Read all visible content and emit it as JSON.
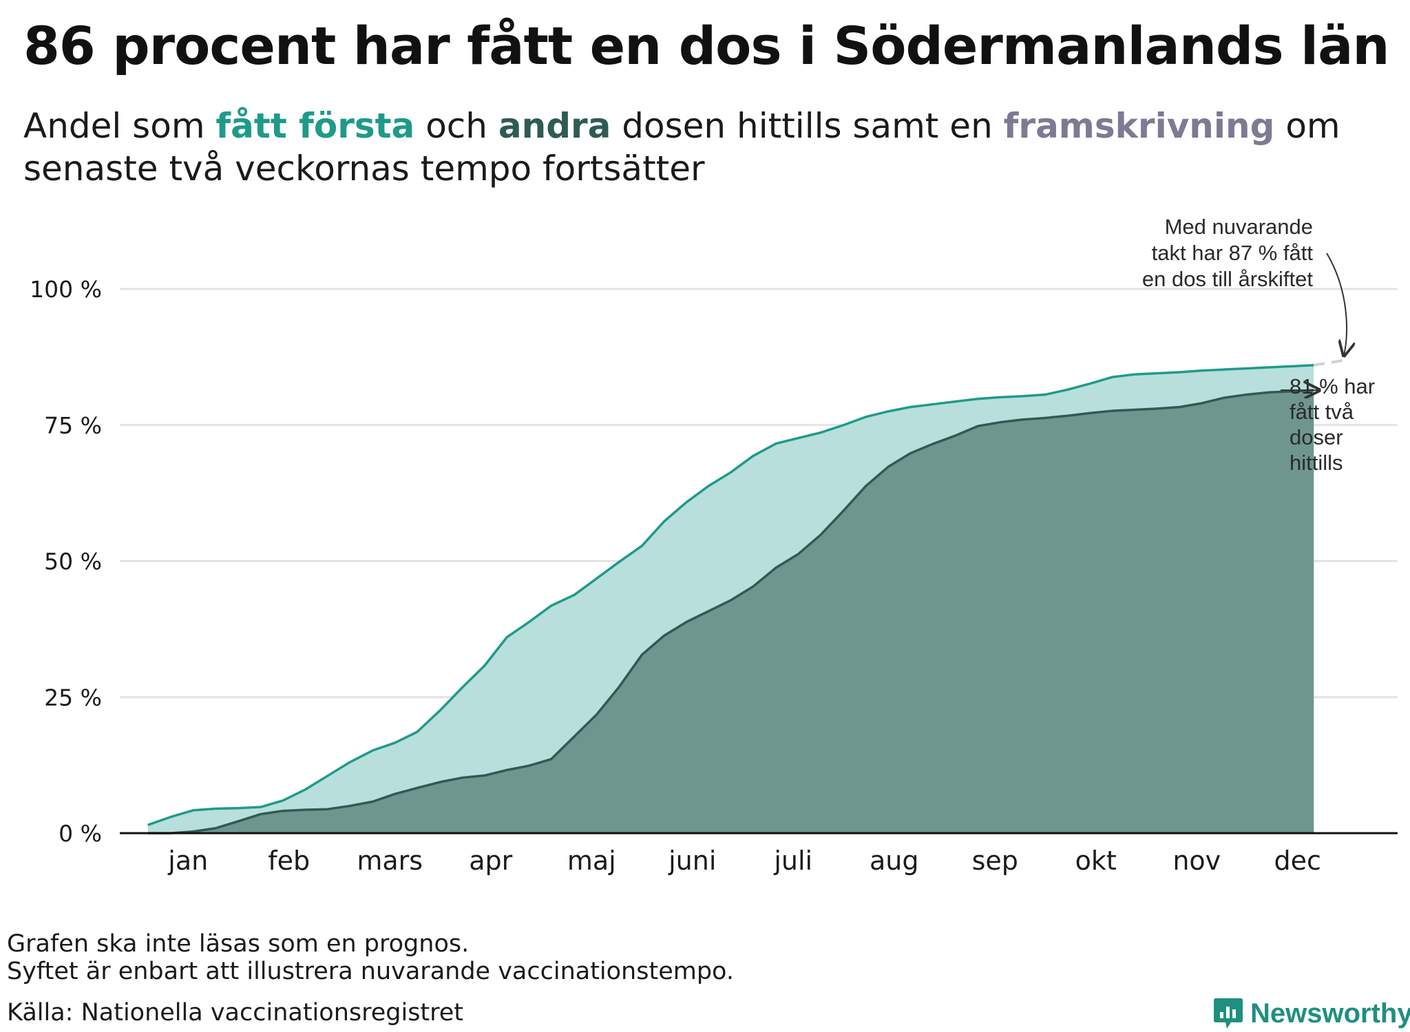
{
  "title": "86 procent har fått en dos i Södermanlands län",
  "subtitle": {
    "part1": "Andel som ",
    "first": "fått första",
    "part2": " och ",
    "second": "andra",
    "part3": " dosen hittills samt en ",
    "projection": "framskrivning",
    "part4": " om senaste två veckornas tempo fortsätter"
  },
  "colors": {
    "first_dose": "#1f9a8a",
    "first_dose_fill": "#b8dfdb",
    "second_dose": "#2e5b54",
    "second_dose_fill": "#6e968f",
    "projection": "#7d7a93",
    "projection_line": "#cfd2d6",
    "grid": "#e3e3e3",
    "axis": "#111111"
  },
  "chart_data": {
    "type": "area",
    "title": "86 procent har fått en dos i Södermanlands län",
    "xlabel": "",
    "ylabel": "",
    "x_unit": "month (0 = start of jan, 12 = end of dec)",
    "xlim": [
      0,
      12
    ],
    "ylim": [
      0,
      100
    ],
    "y_ticks": [
      0,
      25,
      50,
      75,
      100
    ],
    "y_tick_labels": [
      "0 %",
      "25 %",
      "50 %",
      "75 %",
      "100 %"
    ],
    "x_tick_labels": [
      "jan",
      "feb",
      "mars",
      "apr",
      "maj",
      "juni",
      "juli",
      "aug",
      "sep",
      "okt",
      "nov",
      "dec"
    ],
    "grid": true,
    "series": [
      {
        "name": "fått första dosen",
        "x": [
          0.1,
          0.33,
          0.55,
          0.77,
          1.0,
          1.22,
          1.44,
          1.66,
          1.88,
          2.1,
          2.33,
          2.55,
          2.77,
          3.0,
          3.22,
          3.44,
          3.66,
          3.88,
          4.1,
          4.33,
          4.55,
          4.77,
          5.0,
          5.22,
          5.44,
          5.66,
          5.88,
          6.1,
          6.33,
          6.55,
          6.77,
          7.0,
          7.22,
          7.44,
          7.66,
          7.88,
          8.1,
          8.33,
          8.55,
          8.77,
          9.0,
          9.22,
          9.44,
          9.66,
          9.88,
          10.1,
          10.33,
          10.55,
          10.77,
          11.0,
          11.22,
          11.44,
          11.66
        ],
        "values": [
          1.5,
          3.0,
          4.2,
          4.5,
          4.6,
          4.8,
          6.0,
          8.0,
          10.5,
          13.0,
          15.2,
          16.6,
          18.6,
          22.6,
          26.8,
          30.8,
          36.0,
          38.8,
          41.8,
          43.8,
          46.8,
          49.8,
          52.8,
          57.3,
          60.8,
          63.8,
          66.3,
          69.3,
          71.6,
          72.6,
          73.6,
          75.0,
          76.5,
          77.5,
          78.3,
          78.8,
          79.3,
          79.8,
          80.1,
          80.3,
          80.6,
          81.5,
          82.6,
          83.8,
          84.3,
          84.5,
          84.7,
          85.0,
          85.2,
          85.4,
          85.6,
          85.8,
          86.0
        ],
        "fill": "#b8dfdb",
        "line": "#1f9a8a"
      },
      {
        "name": "fått andra dosen",
        "x": [
          0.1,
          0.33,
          0.55,
          0.77,
          1.0,
          1.22,
          1.44,
          1.66,
          1.88,
          2.1,
          2.33,
          2.55,
          2.77,
          3.0,
          3.22,
          3.44,
          3.66,
          3.88,
          4.1,
          4.33,
          4.55,
          4.77,
          5.0,
          5.22,
          5.44,
          5.66,
          5.88,
          6.1,
          6.33,
          6.55,
          6.77,
          7.0,
          7.22,
          7.44,
          7.66,
          7.88,
          8.1,
          8.33,
          8.55,
          8.77,
          9.0,
          9.22,
          9.44,
          9.66,
          9.88,
          10.1,
          10.33,
          10.55,
          10.77,
          11.0,
          11.22,
          11.44,
          11.66
        ],
        "values": [
          0.0,
          0.0,
          0.3,
          0.9,
          2.2,
          3.5,
          4.1,
          4.3,
          4.4,
          5.0,
          5.8,
          7.2,
          8.3,
          9.4,
          10.2,
          10.6,
          11.6,
          12.4,
          13.6,
          17.8,
          21.8,
          26.8,
          32.8,
          36.3,
          38.8,
          40.8,
          42.8,
          45.3,
          48.8,
          51.3,
          54.8,
          59.3,
          63.8,
          67.3,
          69.8,
          71.5,
          73.0,
          74.8,
          75.5,
          76.0,
          76.3,
          76.7,
          77.2,
          77.6,
          77.8,
          78.0,
          78.3,
          79.0,
          80.0,
          80.6,
          81.0,
          81.2,
          81.4
        ],
        "fill": "#6e968f",
        "line": "#2e5b54"
      },
      {
        "name": "framskrivning",
        "x": [
          11.66,
          12.0
        ],
        "values": [
          86.0,
          87.0
        ],
        "line": "#cfd2d6",
        "dashed": true
      }
    ],
    "annotations": [
      {
        "id": "projection",
        "lines": [
          "Med nuvarande",
          "takt har 87 % fått",
          "en dos till årskiftet"
        ]
      },
      {
        "id": "second-dose",
        "lines": [
          "81 % har",
          "fått två",
          "doser",
          "hittills"
        ]
      }
    ]
  },
  "footnotes": {
    "line1": "Grafen ska inte läsas som en prognos.",
    "line2": "Syftet är enbart att illustrera nuvarande vaccinationstempo.",
    "source": "Källa: Nationella vaccinationsregistret"
  },
  "logo": {
    "text": "Newsworthy",
    "icon": "newsworthy-logo-icon"
  }
}
